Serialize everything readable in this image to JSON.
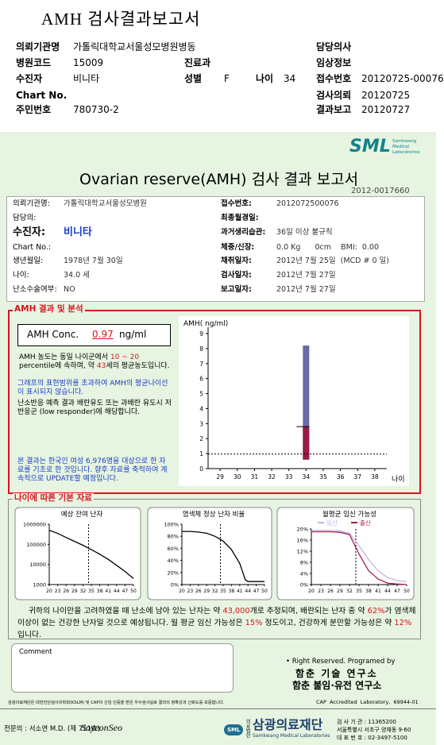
{
  "top": {
    "title": "AMH 검사결과보고서",
    "institution_label": "의뢰기관명",
    "institution": "가톨릭대학교서울성모병원병동",
    "doctor_label": "담당의사",
    "code_label": "병원코드",
    "code": "15009",
    "dept_label": "진료과",
    "clinical_label": "임상정보",
    "patient_label": "수진자",
    "patient": "비니타",
    "sex_label": "성별",
    "sex": "F",
    "age_label": "나이",
    "age": 34,
    "receipt_label": "접수번호",
    "receipt": "20120725-00076",
    "chart_label": "Chart No.",
    "request_label": "검사의뢰",
    "request": "20120725",
    "id_label": "주민번호",
    "id": "780730-2",
    "report_label": "결과보고",
    "report": "20120727"
  },
  "report": {
    "logo": "SML",
    "logo_sub": [
      "Samkwang",
      "Medical",
      "Laboratories"
    ],
    "title": "Ovarian reserve(AMH) 검사 결과 보고서",
    "number": "2012-0017660",
    "left": [
      {
        "label": "의뢰기관명:",
        "value": "가톨릭대학교서울성모병원"
      },
      {
        "label": "담당의:"
      },
      {
        "label": "수진자:",
        "value": "비니타"
      },
      {
        "label": "Chart No.:"
      },
      {
        "label": "생년월일:",
        "value": "1978년 7월 30일"
      },
      {
        "label": "나이:",
        "value": "34.0 세"
      },
      {
        "label": "난소수술여부:",
        "value": "NO"
      }
    ],
    "right": [
      {
        "label": "접수번호:",
        "value": "2012072500076"
      },
      {
        "label": "최종월경일:"
      },
      {
        "label": "과거생리습관:",
        "value": "36일 이상 불규칙"
      },
      {
        "label": "체중/신장:",
        "value": "0.0 Kg      0cm    BMI:  0.00"
      },
      {
        "label": "채취일자:",
        "value": "2012년 7월 25일  (MCD # 0 일)"
      },
      {
        "label": "검사일자:",
        "value": "2012년 7월 27일"
      },
      {
        "label": "보고일자:",
        "value": "2012년 7월 27일"
      }
    ]
  },
  "amh": {
    "heading": "AMH 결과 및 분석",
    "conc_label": "AMH Conc.",
    "value": 0.97,
    "unit": "ng/ml",
    "para1": [
      "AMH 농도는 동일 나이군에서 ",
      "10 ~ 20",
      " percentile에 속하며, 약 ",
      "43",
      "세의 평균농도입니다."
    ],
    "para2": "그래프의 표현범위를 초과하여 AMH의 평균나이선이 표시되지 않습니다.",
    "para3": "난소반응 예측 결과 배란유도 또는 과배란 유도시 저반응군 (low responder)에 해당합니다.",
    "para4": "본 결과는 한국인 여성 6,976명을 대상으로 한 자료를 기초로 한 것입니다. 향후 자료를 축적하여 계속적으로 UPDATE할 예정입니다.",
    "chart": {
      "ylabel": "AMH( ng/ml)",
      "xlabel": "나이",
      "ylim": [
        0,
        9
      ],
      "yticks": [
        0,
        1,
        2,
        3,
        4,
        5,
        6,
        7,
        8,
        9
      ],
      "xlim": [
        28.3,
        38.7
      ],
      "xticks": [
        29,
        30,
        31,
        32,
        33,
        34,
        35,
        36,
        37,
        38
      ],
      "band": {
        "x": 34,
        "low": 0.6,
        "mean": 2.8,
        "high": 8.2
      }
    }
  },
  "age_data": {
    "heading": "나이에 따른 기본 자료",
    "charts": [
      {
        "title": "예상 잔여 난자",
        "log": true,
        "ylim": [
          1000,
          1000000
        ],
        "yticks": [
          1000,
          10000,
          100000,
          1000000
        ],
        "xlim": [
          20,
          50
        ],
        "xticks": [
          20,
          23,
          26,
          29,
          32,
          35,
          38,
          41,
          44,
          47,
          50
        ],
        "series": [
          {
            "color": "#000000",
            "x": [
              20,
              23,
              26,
              29,
              32,
              35,
              38,
              41,
              44,
              47,
              50
            ],
            "values": [
              500000,
              350000,
              220000,
              140000,
              90000,
              55000,
              32000,
              18000,
              9000,
              4500,
              2000
            ]
          }
        ]
      },
      {
        "title": "염색체 정상 난자 비율",
        "ylim": [
          0,
          100
        ],
        "yticks": [
          {
            "value": 0,
            "label": "0%"
          },
          {
            "value": 20,
            "label": "20%"
          },
          {
            "value": 40,
            "label": "40%"
          },
          {
            "value": 60,
            "label": "60%"
          },
          {
            "value": 80,
            "label": "80%"
          },
          {
            "value": 100,
            "label": "100%"
          }
        ],
        "xlim": [
          20,
          50
        ],
        "xticks": [
          20,
          23,
          26,
          29,
          32,
          35,
          38,
          41,
          44,
          47,
          50
        ],
        "series": [
          {
            "color": "#000000",
            "x": [
              20,
              23,
              26,
              29,
              32,
              35,
              38,
              41,
              42,
              43,
              44,
              47,
              50
            ],
            "values": [
              88,
              88,
              87,
              85,
              80,
              72,
              58,
              35,
              22,
              8,
              5,
              5,
              5
            ]
          }
        ]
      },
      {
        "title": "월평균 임신 가능성",
        "ylim": [
          0,
          20
        ],
        "yticks": [
          {
            "value": 0,
            "label": "0%"
          },
          {
            "value": 4,
            "label": "4%"
          },
          {
            "value": 8,
            "label": "8%"
          },
          {
            "value": 12,
            "label": "12%"
          },
          {
            "value": 16,
            "label": "16%"
          },
          {
            "value": 20,
            "label": "20%"
          }
        ],
        "xlim": [
          20,
          50
        ],
        "xticks": [
          20,
          23,
          26,
          29,
          32,
          35,
          38,
          41,
          44,
          47,
          50
        ],
        "series": [
          {
            "name": "임신",
            "color": "#c4b4e4",
            "x": [
              20,
              23,
              26,
              29,
              32,
              35,
              38,
              41,
              44,
              47,
              50
            ],
            "values": [
              19.5,
              19.5,
              19.5,
              19.3,
              18.5,
              14,
              9,
              5,
              2.5,
              1.5,
              1
            ]
          },
          {
            "name": "출산",
            "color": "#a0204a",
            "x": [
              20,
              23,
              26,
              29,
              32,
              35,
              38,
              41,
              44,
              47,
              50
            ],
            "values": [
              19,
              19,
              19,
              18.8,
              18,
              11,
              5,
              2,
              0.5,
              0.2,
              0
            ]
          }
        ]
      }
    ],
    "summary": [
      "귀하의 나이만을 고려하였을 때 난소에 남아 있는 난자는 약 ",
      "43,000",
      "개로 추정되며, 배란되는 난자 중 약 ",
      "62%",
      "가 염색체이상이 없는 건강한 난자일 것으로 예상됩니다. 월 평균 임신 가능성은 ",
      "15%",
      " 정도이고, 건강하게 분만할 가능성은 약 ",
      "12%",
      "입니다."
    ]
  },
  "comment": {
    "label": "Comment"
  },
  "credits": [
    "• Right Reserved. Programed by",
    "함춘 기술 연구소",
    "함춘 불임·유전 연구소"
  ],
  "footer": {
    "notice": "삼광의료재단은 대한진단검사의학회(KSLM) 및 CAP의 신임 인증을 받은 우수검사실로 결과의 정확성과 신뢰도를 보증합니다.",
    "cap": "CAP  Accredited  Laboratory,  69944-01",
    "doctor": "전문의 : 서소연 M.D. (제 711호)",
    "signature": "SoyeonSeo",
    "logo_small": "SML",
    "corp": "의료법인",
    "org": "삼광의료재단",
    "org_en": "Samkwang Medical Laboratories",
    "contact": [
      "검 사 기 관 : 11365200",
      "서울특별시 서초구 양재동 9-60",
      "대 표 번 호 : 02-3497-5100"
    ]
  }
}
